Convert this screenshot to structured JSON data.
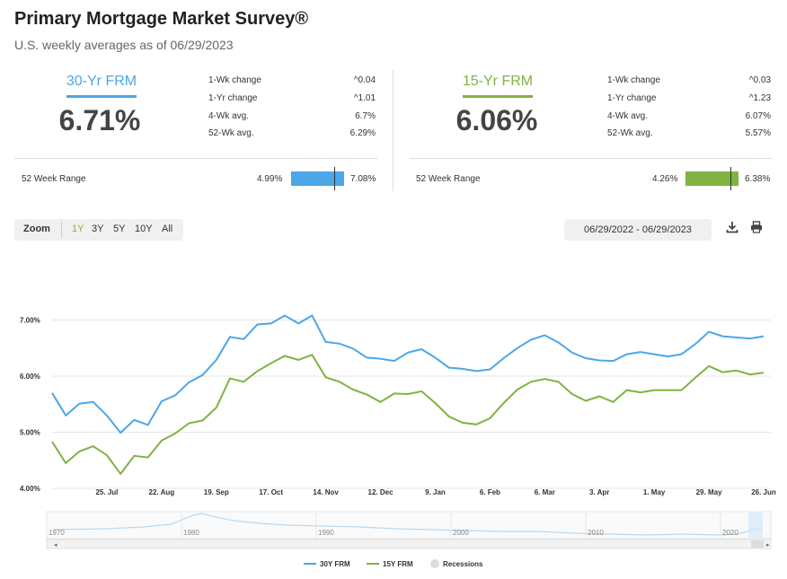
{
  "header": {
    "title": "Primary Mortgage Market Survey®",
    "subtitle": "U.S. weekly averages as of 06/29/2023"
  },
  "panels": [
    {
      "name": "30-Yr FRM",
      "rate": "6.71%",
      "color": "#4da6e8",
      "stats": [
        {
          "label": "1-Wk change",
          "value": "^0.04"
        },
        {
          "label": "1-Yr change",
          "value": "^1.01"
        },
        {
          "label": "4-Wk avg.",
          "value": "6.7%"
        },
        {
          "label": "52-Wk avg.",
          "value": "6.29%"
        }
      ],
      "range_label": "52 Week Range",
      "range_low": "4.99%",
      "range_high": "7.08%",
      "range_current_fraction": 0.82
    },
    {
      "name": "15-Yr FRM",
      "rate": "6.06%",
      "color": "#7fb342",
      "stats": [
        {
          "label": "1-Wk change",
          "value": "^0.03"
        },
        {
          "label": "1-Yr change",
          "value": "^1.23"
        },
        {
          "label": "4-Wk avg.",
          "value": "6.07%"
        },
        {
          "label": "52-Wk avg.",
          "value": "5.57%"
        }
      ],
      "range_label": "52 Week Range",
      "range_low": "4.26%",
      "range_high": "6.38%",
      "range_current_fraction": 0.85
    }
  ],
  "toolbar": {
    "zoom_label": "Zoom",
    "zoom_options": [
      "1Y",
      "3Y",
      "5Y",
      "10Y",
      "All"
    ],
    "active_zoom": "1Y",
    "date_range": "06/29/2022 - 06/29/2023",
    "download_icon": "download-icon",
    "print_icon": "print-icon"
  },
  "chart_data": {
    "type": "line",
    "y_ticks": [
      "4.00%",
      "5.00%",
      "6.00%",
      "7.00%"
    ],
    "ylim": [
      4.0,
      8.0
    ],
    "x_ticks": [
      "25. Jul",
      "22. Aug",
      "19. Sep",
      "17. Oct",
      "14. Nov",
      "12. Dec",
      "9. Jan",
      "6. Feb",
      "6. Mar",
      "3. Apr",
      "1. May",
      "29. May",
      "26. Jun"
    ],
    "x_tick_index": [
      4,
      8,
      12,
      16,
      20,
      24,
      28,
      32,
      36,
      40,
      44,
      48,
      52
    ],
    "series": [
      {
        "name": "30Y FRM",
        "color": "#4da6e8",
        "values": [
          5.7,
          5.3,
          5.51,
          5.54,
          5.3,
          4.99,
          5.22,
          5.13,
          5.55,
          5.66,
          5.89,
          6.02,
          6.29,
          6.7,
          6.66,
          6.92,
          6.94,
          7.08,
          6.94,
          7.08,
          6.61,
          6.58,
          6.49,
          6.33,
          6.31,
          6.27,
          6.42,
          6.48,
          6.33,
          6.15,
          6.13,
          6.09,
          6.12,
          6.32,
          6.5,
          6.65,
          6.73,
          6.6,
          6.42,
          6.32,
          6.28,
          6.27,
          6.39,
          6.43,
          6.39,
          6.35,
          6.39,
          6.57,
          6.79,
          6.71,
          6.69,
          6.67,
          6.71
        ]
      },
      {
        "name": "15Y FRM",
        "color": "#7fb342",
        "values": [
          4.83,
          4.45,
          4.66,
          4.75,
          4.59,
          4.26,
          4.58,
          4.55,
          4.85,
          4.98,
          5.16,
          5.21,
          5.44,
          5.96,
          5.9,
          6.09,
          6.23,
          6.36,
          6.29,
          6.38,
          5.98,
          5.9,
          5.76,
          5.67,
          5.54,
          5.69,
          5.68,
          5.73,
          5.52,
          5.28,
          5.17,
          5.14,
          5.25,
          5.52,
          5.76,
          5.9,
          5.95,
          5.9,
          5.68,
          5.56,
          5.64,
          5.54,
          5.75,
          5.71,
          5.75,
          5.75,
          5.75,
          5.97,
          6.18,
          6.07,
          6.1,
          6.03,
          6.06
        ]
      }
    ],
    "navigator_years": [
      "1970",
      "1980",
      "1990",
      "2000",
      "2010",
      "2020"
    ],
    "legend": [
      {
        "name": "30Y FRM",
        "color": "#4da6e8"
      },
      {
        "name": "15Y FRM",
        "color": "#7fb342"
      },
      {
        "name": "Recessions",
        "color": "#dddddd"
      }
    ]
  }
}
